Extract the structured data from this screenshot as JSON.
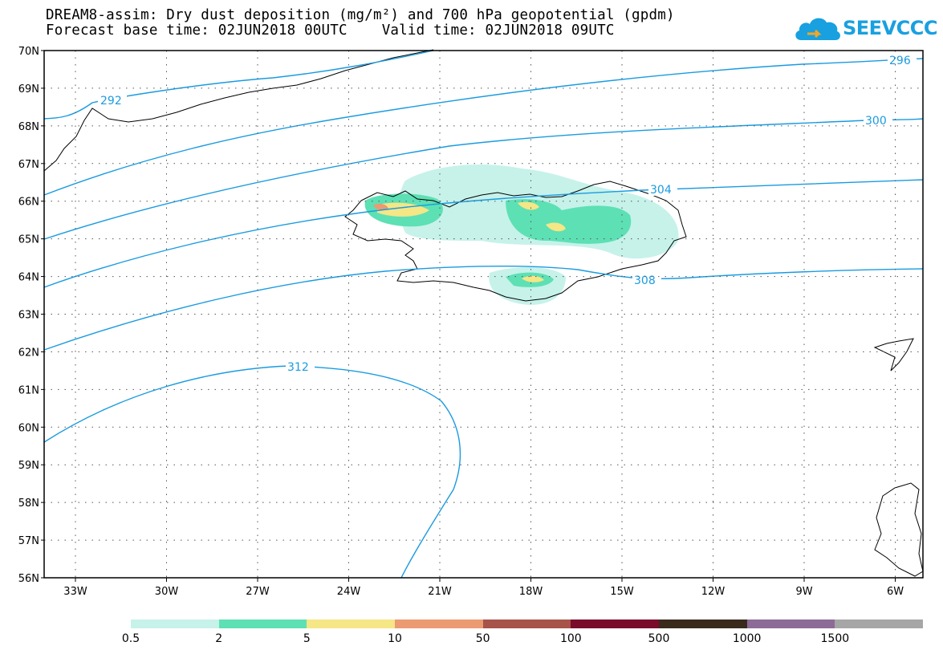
{
  "header": {
    "title_line1": "DREAM8-assim: Dry dust deposition (mg/m²) and 700 hPa geopotential (gpdm)",
    "title_line2": "Forecast base time: 02JUN2018 00UTC    Valid time: 02JUN2018 09UTC"
  },
  "logo": {
    "text": "SEEVCCC",
    "icon": "cloud-icon",
    "color": "#19a0e0"
  },
  "axes": {
    "lat_labels": [
      "70N",
      "69N",
      "68N",
      "67N",
      "66N",
      "65N",
      "64N",
      "63N",
      "62N",
      "61N",
      "60N",
      "59N",
      "58N",
      "57N",
      "56N"
    ],
    "lon_labels": [
      "33W",
      "30W",
      "27W",
      "24W",
      "21W",
      "18W",
      "15W",
      "12W",
      "9W",
      "6W"
    ]
  },
  "contours": {
    "color": "#1a9be0",
    "labels": [
      "292",
      "296",
      "300",
      "304",
      "308",
      "312"
    ]
  },
  "colorbar": {
    "colors": [
      "#c6f2ea",
      "#5de0b4",
      "#f5e686",
      "#eb9a72",
      "#a8534a",
      "#7a0b2a",
      "#3a2a1c",
      "#8c6b96",
      "#a6a6a6"
    ],
    "labels": [
      "0.5",
      "2",
      "5",
      "10",
      "50",
      "100",
      "500",
      "1000",
      "1500"
    ]
  }
}
